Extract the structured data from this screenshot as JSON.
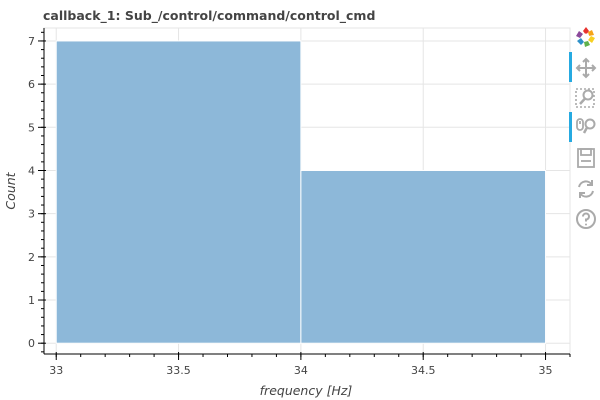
{
  "chart_data": {
    "type": "bar",
    "title": "callback_1: Sub_/control/command/control_cmd",
    "xlabel": "frequency [Hz]",
    "ylabel": "Count",
    "xlim": [
      32.95,
      35.1
    ],
    "ylim": [
      -0.25,
      7.3
    ],
    "x_ticks": [
      33,
      33.5,
      34,
      34.5,
      35
    ],
    "x_tick_labels": [
      "33",
      "33.5",
      "34",
      "34.5",
      "35"
    ],
    "y_ticks": [
      0,
      1,
      2,
      3,
      4,
      5,
      6,
      7
    ],
    "y_tick_labels": [
      "0",
      "1",
      "2",
      "3",
      "4",
      "5",
      "6",
      "7"
    ],
    "bins": [
      {
        "left": 33,
        "right": 34,
        "count": 7
      },
      {
        "left": 34,
        "right": 35,
        "count": 4
      }
    ],
    "grid": true,
    "bar_color": "#8db8d9"
  },
  "toolbar": {
    "tools": [
      {
        "icon": "bokeh-logo-icon",
        "active": false
      },
      {
        "icon": "pan-icon",
        "active": true
      },
      {
        "icon": "box-zoom-icon",
        "active": false
      },
      {
        "icon": "wheel-zoom-icon",
        "active": true
      },
      {
        "icon": "save-icon",
        "active": false
      },
      {
        "icon": "reset-icon",
        "active": false
      },
      {
        "icon": "help-icon",
        "active": false
      }
    ]
  }
}
